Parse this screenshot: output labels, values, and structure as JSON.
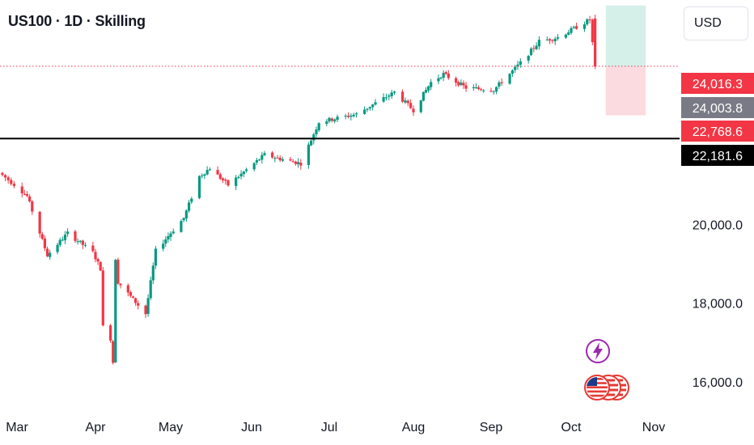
{
  "header": {
    "title": "US100 · 1D · Skilling",
    "currency_label": "USD"
  },
  "colors": {
    "up": "#089981",
    "down": "#f23645",
    "profit_zone": "#d5efe9",
    "loss_zone": "#fcdbe0",
    "last_price_line": "#f23645",
    "level_line": "#000000",
    "tag_entry_bg": "#787b86",
    "tag_level_bg": "#000000"
  },
  "icons": {
    "event_flash": "lightning-icon",
    "event_country": "us-flag-icon"
  },
  "chart_data": {
    "type": "candlestick",
    "x_axis": {
      "labels": [
        "Mar",
        "Apr",
        "May",
        "Jun",
        "Jul",
        "Aug",
        "Sep",
        "Oct",
        "Nov"
      ]
    },
    "y_axis": {
      "tick_labels": [
        "16,000.0",
        "18,000.0",
        "20,000.0"
      ],
      "ticks": [
        16000,
        18000,
        20000
      ],
      "range": [
        15220,
        25700
      ]
    },
    "price_tags": [
      {
        "name": "last-price-tag",
        "label": "24,016.3",
        "value": 24016.3,
        "style": "down"
      },
      {
        "name": "entry-price-tag",
        "label": "24,003.8",
        "value": 24003.8,
        "style": "entry"
      },
      {
        "name": "stop-loss-tag",
        "label": "22,768.6",
        "value": 22768.6,
        "style": "down"
      },
      {
        "name": "level-price-tag",
        "label": "22,181.6",
        "value": 22181.6,
        "style": "level"
      }
    ],
    "horizontal_level": 22181.6,
    "last_price": 24016.3,
    "position_tool": {
      "entry": 24003.8,
      "take_profit": 25560,
      "stop_loss": 22768.6,
      "start_date": "Oct 14",
      "end_date": "Oct 29"
    },
    "candle_points": [
      {
        "label": "Feb 24",
        "close": 21250
      },
      {
        "label": "Mar 5",
        "close": 20720
      },
      {
        "label": "Mar 13",
        "close": 19220
      },
      {
        "label": "Mar 21",
        "close": 19780
      },
      {
        "label": "Mar 31",
        "close": 19290
      },
      {
        "label": "Apr 3",
        "close": 18880
      },
      {
        "label": "Apr 4",
        "close": 17400
      },
      {
        "label": "Apr 7",
        "close": 17100
      },
      {
        "label": "Apr 8",
        "close": 16500
      },
      {
        "label": "Apr 9",
        "close": 19140
      },
      {
        "label": "Apr 10",
        "close": 18540
      },
      {
        "label": "Apr 21",
        "close": 17730
      },
      {
        "label": "Apr 25",
        "close": 19330
      },
      {
        "label": "May 6",
        "close": 20160
      },
      {
        "label": "May 12",
        "close": 21220
      },
      {
        "label": "May 16",
        "close": 21430
      },
      {
        "label": "May 23",
        "close": 21000
      },
      {
        "label": "Jun 6",
        "close": 21770
      },
      {
        "label": "Jun 13",
        "close": 21650
      },
      {
        "label": "Jun 20",
        "close": 21550
      },
      {
        "label": "Jun 27",
        "close": 22600
      },
      {
        "label": "Jul 11",
        "close": 22800
      },
      {
        "label": "Jul 25",
        "close": 23360
      },
      {
        "label": "Aug 1",
        "close": 22900
      },
      {
        "label": "Aug 8",
        "close": 23610
      },
      {
        "label": "Aug 13",
        "close": 23820
      },
      {
        "label": "Aug 22",
        "close": 23470
      },
      {
        "label": "Sep 2",
        "close": 23420
      },
      {
        "label": "Sep 12",
        "close": 24100
      },
      {
        "label": "Sep 19",
        "close": 24650
      },
      {
        "label": "Sep 26",
        "close": 24750
      },
      {
        "label": "Oct 8",
        "close": 25200
      },
      {
        "label": "Oct 10",
        "close": 24016.3
      }
    ]
  }
}
